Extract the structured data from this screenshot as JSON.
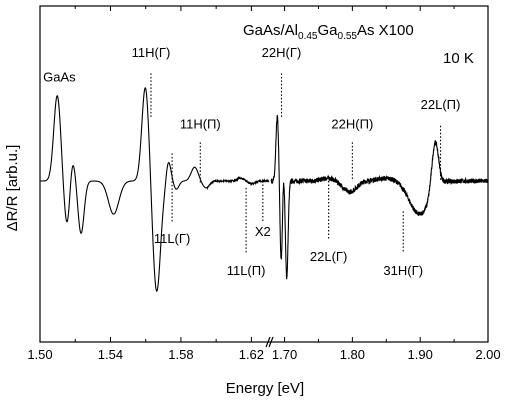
{
  "chart_data": {
    "type": "line",
    "title": "GaAs/Al0.45Ga0.55As X100",
    "title_parts": {
      "prefix": "GaAs/Al",
      "sub1": "0.45",
      "mid": "Ga",
      "sub2": "0.55",
      "suffix": "As X100"
    },
    "temperature_label": "10 K",
    "xlabel": "Energy [eV]",
    "ylabel": "ΔR/R [arb.u.]",
    "y_ticks_shown": false,
    "broken_axis": true,
    "segments": [
      {
        "xlim": [
          1.5,
          1.63
        ],
        "ticks": [
          1.5,
          1.54,
          1.58,
          1.62
        ],
        "tick_labels": [
          "1.50",
          "1.54",
          "1.58",
          "1.62"
        ]
      },
      {
        "xlim": [
          1.68,
          2.0
        ],
        "ticks": [
          1.7,
          1.8,
          1.9,
          2.0
        ],
        "tick_labels": [
          "1.70",
          "1.80",
          "1.90",
          "2.00"
        ]
      }
    ],
    "ylim": [
      -1.0,
      1.0
    ],
    "series": [
      {
        "baseline": 0.0,
        "features": [
          {
            "x": 1.513,
            "y_max": 0.62,
            "y_min": -0.52,
            "width": 0.004
          },
          {
            "x": 1.5205,
            "y_max": 0.42,
            "y_min": -0.38,
            "width": 0.0035
          },
          {
            "x": 1.537,
            "y_max": 0.0,
            "y_min": -0.24,
            "width": 0.006
          },
          {
            "x": 1.563,
            "y_max": 0.68,
            "y_min": -1.0,
            "width": 0.004
          },
          {
            "x": 1.5685,
            "y_max": 0.2,
            "y_min": -0.1,
            "width": 0.003
          },
          {
            "x": 1.575,
            "y_max": 0.18,
            "y_min": -0.06,
            "width": 0.003
          },
          {
            "x": 1.591,
            "y_max": 0.1,
            "y_min": -0.05,
            "width": 0.004
          },
          {
            "x": 1.617,
            "y_max": 0.02,
            "y_min": -0.02,
            "width": 0.004
          },
          {
            "x": 1.6925,
            "y_max": 0.47,
            "y_min": -1.0,
            "width": 0.004
          },
          {
            "x": 1.7,
            "y_max": 0.55,
            "y_min": -0.7,
            "width": 0.004
          },
          {
            "x": 1.78,
            "y_max": 0.02,
            "y_min": -0.08,
            "width": 0.02
          },
          {
            "x": 1.875,
            "y_max": 0.02,
            "y_min": -0.24,
            "width": 0.03
          },
          {
            "x": 1.93,
            "y_max": 0.35,
            "y_min": 0.0,
            "width": 0.01
          }
        ]
      }
    ],
    "annotations": [
      {
        "text": "GaAs",
        "x": 1.511,
        "y": 0.72
      },
      {
        "text": "11H(Γ)",
        "x": 1.563,
        "y": 0.9,
        "marker_y_from": 0.78,
        "marker_y_to": 0.45
      },
      {
        "text": "11L(Γ)",
        "x": 1.575,
        "y": -0.45,
        "marker_y_from": 0.2,
        "marker_y_to": -0.3
      },
      {
        "text": "11H(Π)",
        "x": 1.591,
        "y": 0.38,
        "marker_y_from": 0.28,
        "marker_y_to": -0.02
      },
      {
        "text": "11L(Π)",
        "x": 1.617,
        "y": -0.68,
        "marker_y_from": -0.05,
        "marker_y_to": -0.52
      },
      {
        "text": "X2",
        "x": 1.6265,
        "y": -0.4,
        "marker_y_from": 0.0,
        "marker_y_to": -0.3
      },
      {
        "text": "22H(Γ)",
        "x": 1.6955,
        "y": 0.9,
        "marker_y_from": 0.78,
        "marker_y_to": 0.45
      },
      {
        "text": "22L(Γ)",
        "x": 1.765,
        "y": -0.58,
        "marker_y_from": 0.0,
        "marker_y_to": -0.42
      },
      {
        "text": "22H(Π)",
        "x": 1.8,
        "y": 0.38,
        "marker_y_from": 0.28,
        "marker_y_to": 0.0
      },
      {
        "text": "31H(Γ)",
        "x": 1.875,
        "y": -0.68,
        "marker_y_from": -0.22,
        "marker_y_to": -0.52
      },
      {
        "text": "22L(Π)",
        "x": 1.93,
        "y": 0.52,
        "marker_y_from": 0.4,
        "marker_y_to": 0.0
      }
    ]
  }
}
